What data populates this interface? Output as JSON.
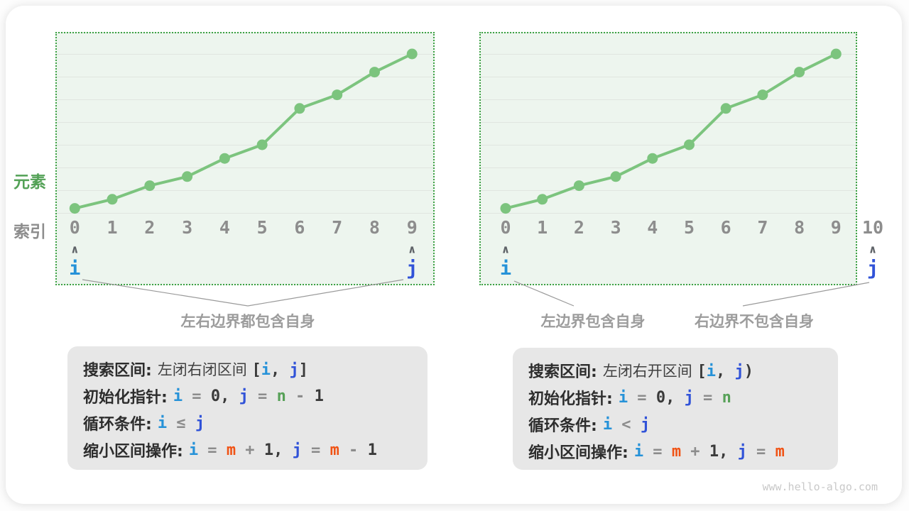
{
  "watermark": "www.hello-algo.com",
  "axis_labels": {
    "element": "元素",
    "index": "索引"
  },
  "pointer_labels": {
    "i": "i",
    "j": "j",
    "caret": "∧"
  },
  "colors": {
    "chart_green": "#7cc47e",
    "dotted_border_green": "#3da144",
    "panel_background": "#edf5ee",
    "element_label_green": "#53a156",
    "index_gray": "#8d8d8d",
    "caption_gray": "#9c9c9c",
    "pointer_i_blue": "#2692d8",
    "pointer_j_blue": "#3153d8",
    "n_green": "#57a158",
    "m_orange": "#f05315",
    "infobox_gray": "#e7e7e7"
  },
  "panels": [
    {
      "indices": [
        "0",
        "1",
        "2",
        "3",
        "4",
        "5",
        "6",
        "7",
        "8",
        "9"
      ],
      "captions": [
        "左右边界都包含自身"
      ],
      "info_rows": [
        {
          "label": "搜索区间:",
          "parts": [
            [
              "plain",
              "左闭右闭区间 "
            ],
            [
              "dark",
              "["
            ],
            [
              "i",
              "i"
            ],
            [
              "dark",
              ", "
            ],
            [
              "j",
              "j"
            ],
            [
              "dark",
              "]"
            ]
          ]
        },
        {
          "label": "初始化指针:",
          "parts": [
            [
              "i",
              "i"
            ],
            [
              "op",
              " = "
            ],
            [
              "dark",
              "0"
            ],
            [
              "dark",
              ", "
            ],
            [
              "j",
              "j"
            ],
            [
              "op",
              " = "
            ],
            [
              "n",
              "n"
            ],
            [
              "op",
              " - "
            ],
            [
              "dark",
              "1"
            ]
          ]
        },
        {
          "label": "循环条件:",
          "parts": [
            [
              "i",
              "i"
            ],
            [
              "op",
              " ≤ "
            ],
            [
              "j",
              "j"
            ]
          ]
        },
        {
          "label": "缩小区间操作:",
          "parts": [
            [
              "i",
              "i"
            ],
            [
              "op",
              " = "
            ],
            [
              "m",
              "m"
            ],
            [
              "op",
              " + "
            ],
            [
              "dark",
              "1"
            ],
            [
              "dark",
              ", "
            ],
            [
              "j",
              "j"
            ],
            [
              "op",
              " = "
            ],
            [
              "m",
              "m"
            ],
            [
              "op",
              " - "
            ],
            [
              "dark",
              "1"
            ]
          ]
        }
      ]
    },
    {
      "indices": [
        "0",
        "1",
        "2",
        "3",
        "4",
        "5",
        "6",
        "7",
        "8",
        "9",
        "10"
      ],
      "captions": [
        "左边界包含自身",
        "右边界不包含自身"
      ],
      "info_rows": [
        {
          "label": "搜索区间:",
          "parts": [
            [
              "plain",
              "左闭右开区间 "
            ],
            [
              "dark",
              "["
            ],
            [
              "i",
              "i"
            ],
            [
              "dark",
              ", "
            ],
            [
              "j",
              "j"
            ],
            [
              "dark",
              ")"
            ]
          ]
        },
        {
          "label": "初始化指针:",
          "parts": [
            [
              "i",
              "i"
            ],
            [
              "op",
              " = "
            ],
            [
              "dark",
              "0"
            ],
            [
              "dark",
              ", "
            ],
            [
              "j",
              "j"
            ],
            [
              "op",
              " = "
            ],
            [
              "n",
              "n"
            ]
          ]
        },
        {
          "label": "循环条件:",
          "parts": [
            [
              "i",
              "i"
            ],
            [
              "op",
              " < "
            ],
            [
              "j",
              "j"
            ]
          ]
        },
        {
          "label": "缩小区间操作:",
          "parts": [
            [
              "i",
              "i"
            ],
            [
              "op",
              " = "
            ],
            [
              "m",
              "m"
            ],
            [
              "op",
              " + "
            ],
            [
              "dark",
              "1"
            ],
            [
              "dark",
              ", "
            ],
            [
              "j",
              "j"
            ],
            [
              "op",
              " = "
            ],
            [
              "m",
              "m"
            ]
          ]
        }
      ]
    }
  ],
  "chart_data": [
    {
      "type": "line",
      "title": "左闭右闭区间 [i, j]",
      "x": [
        0,
        1,
        2,
        3,
        4,
        5,
        6,
        7,
        8,
        9
      ],
      "y": [
        0.2,
        0.6,
        1.2,
        1.6,
        2.4,
        3.0,
        4.6,
        5.2,
        6.2,
        7.0
      ],
      "x_ticks": [
        "0",
        "1",
        "2",
        "3",
        "4",
        "5",
        "6",
        "7",
        "8",
        "9"
      ],
      "xlabel": "索引",
      "ylabel": "元素",
      "ylim": [
        0,
        7
      ],
      "grid": "horizontal",
      "marker": "circle",
      "legend_position": "none"
    },
    {
      "type": "line",
      "title": "左闭右开区间 [i, j)",
      "x": [
        0,
        1,
        2,
        3,
        4,
        5,
        6,
        7,
        8,
        9
      ],
      "y": [
        0.2,
        0.6,
        1.2,
        1.6,
        2.4,
        3.0,
        4.6,
        5.2,
        6.2,
        7.0
      ],
      "x_ticks": [
        "0",
        "1",
        "2",
        "3",
        "4",
        "5",
        "6",
        "7",
        "8",
        "9",
        "10"
      ],
      "xlabel": "索引",
      "ylabel": "元素",
      "ylim": [
        0,
        7
      ],
      "grid": "horizontal",
      "marker": "circle",
      "legend_position": "none"
    }
  ]
}
